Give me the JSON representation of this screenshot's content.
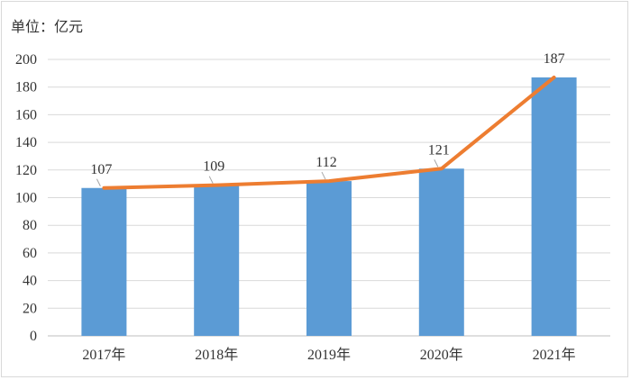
{
  "unit_label": "单位：亿元",
  "chart_data": {
    "type": "bar",
    "categories": [
      "2017年",
      "2018年",
      "2019年",
      "2020年",
      "2021年"
    ],
    "values": [
      107,
      109,
      112,
      121,
      187
    ],
    "data_labels": [
      "107",
      "109",
      "112",
      "121",
      "187"
    ],
    "line_overlay": true,
    "ylim": [
      0,
      200
    ],
    "yticks": [
      0,
      20,
      40,
      60,
      80,
      100,
      120,
      140,
      160,
      180,
      200
    ],
    "grid": true,
    "legend": "none",
    "colors": {
      "bar": "#5b9bd5",
      "line": "#ed7d31",
      "grid": "#d9d9d9",
      "axis": "#bfbfbf"
    }
  }
}
